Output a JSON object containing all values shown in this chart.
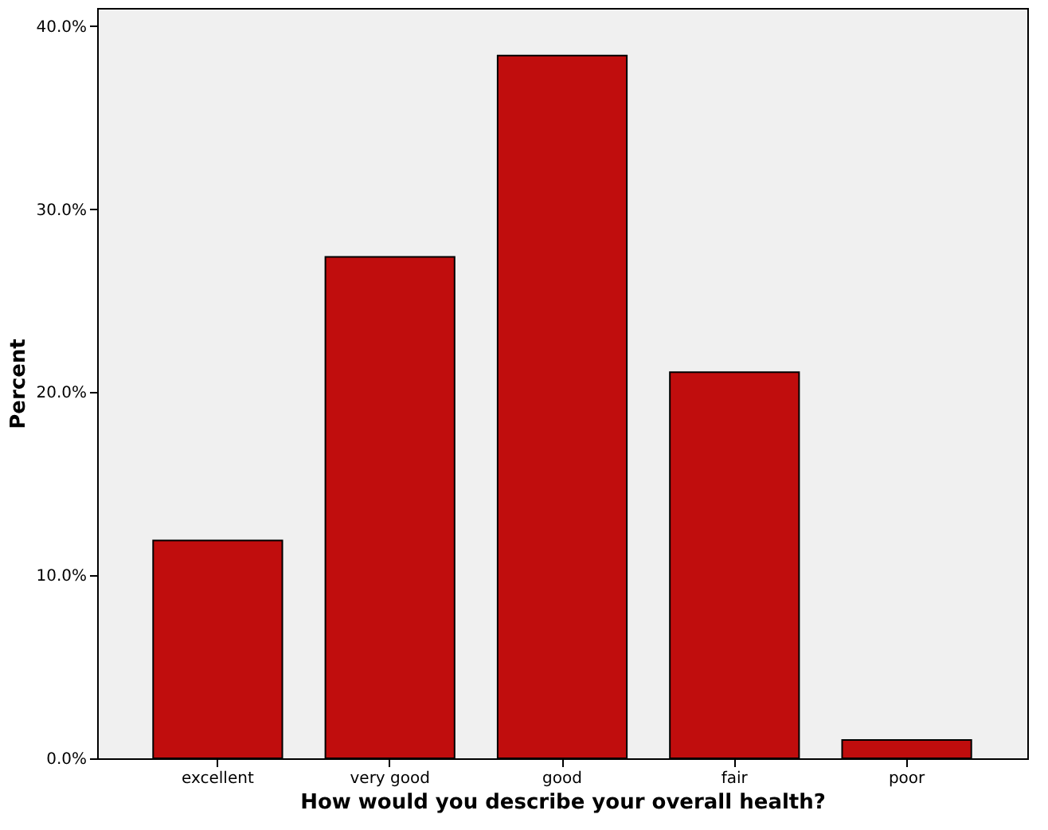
{
  "chart_data": {
    "type": "bar",
    "xlabel": "How would you describe your overall health?",
    "ylabel": "Percent",
    "categories": [
      "excellent",
      "very good",
      "good",
      "fair",
      "poor"
    ],
    "values": [
      11.9,
      27.4,
      38.4,
      21.1,
      1.0
    ],
    "color": "#c00d0d",
    "ylim": [
      0,
      41
    ],
    "yticks": [
      {
        "value": 0,
        "label": "0.0%"
      },
      {
        "value": 10,
        "label": "10.0%"
      },
      {
        "value": 20,
        "label": "20.0%"
      },
      {
        "value": 30,
        "label": "30.0%"
      },
      {
        "value": 40,
        "label": "40.0%"
      }
    ],
    "grid": false
  }
}
